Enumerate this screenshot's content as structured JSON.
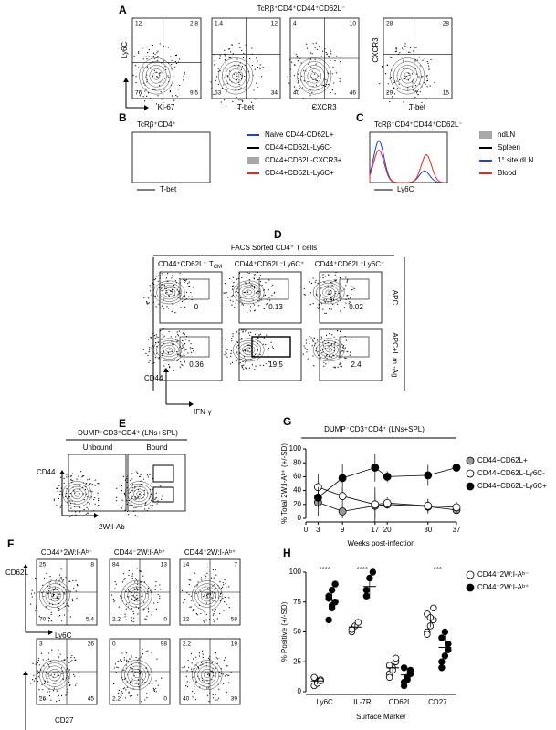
{
  "panels": {
    "A": {
      "label": "A",
      "title": "TcRβ⁺CD4⁺CD44⁺CD62L⁻",
      "plots": [
        {
          "y_label": "Ly6C",
          "x_label": "Ki-67",
          "quadrants": [
            "12",
            "2.8",
            "76",
            "9.5"
          ]
        },
        {
          "x_label": "T-bet",
          "quadrants": [
            "1.4",
            "12",
            "53",
            "34"
          ]
        },
        {
          "x_label": "CXCR3",
          "quadrants": [
            "4",
            "10",
            "40",
            "46"
          ]
        },
        {
          "y_label": "CXCR3",
          "x_label": "T-bet",
          "quadrants": [
            "28",
            "28",
            "29",
            "15"
          ]
        }
      ]
    },
    "B": {
      "label": "B",
      "title": "TcRβ⁺CD4⁺",
      "x_label": "T-bet",
      "legend": [
        {
          "name": "Naive CD44-CD62L+",
          "color": "#1f3fd6"
        },
        {
          "name": "CD44+CD62L-Ly6C-",
          "color": "#000000"
        },
        {
          "name": "CD44+CD62L-CXCR3+",
          "color": "#a8a8a8"
        },
        {
          "name": "CD44+CD62L-Ly6C+",
          "color": "#e8291c"
        }
      ]
    },
    "C": {
      "label": "C",
      "title": "TcRβ⁺CD4⁺CD44⁺CD62L⁻",
      "x_label": "Ly6C",
      "legend": [
        {
          "name": "ndLN",
          "color": "#a8a8a8"
        },
        {
          "name": "Spleen",
          "color": "#000000"
        },
        {
          "name": "1° site dLN",
          "color": "#1f3fd6"
        },
        {
          "name": "Blood",
          "color": "#e8291c"
        }
      ]
    },
    "D": {
      "label": "D",
      "title": "FACS Sorted CD4⁺ T cells",
      "columns": [
        "CD44⁺CD62L⁺ T",
        "CD44⁺CD62L⁻Ly6C⁺",
        "CD44⁺CD62L⁻Ly6C⁻"
      ],
      "tcm_sub": "CM",
      "rows": [
        "APC",
        "APC+L.m.-Ag"
      ],
      "gates": [
        [
          "0",
          "0.13",
          "0.02"
        ],
        [
          "0.36",
          "19.5",
          "2.4"
        ]
      ],
      "y_label": "CD44",
      "x_label": "IFN-γ"
    },
    "E": {
      "label": "E",
      "title": "DUMP⁻CD3⁺CD4⁺ (LNs+SPL)",
      "columns": [
        "Unbound",
        "Bound"
      ],
      "y_label": "CD44",
      "x_label": "2W:I-Ab"
    },
    "F": {
      "label": "F",
      "columns": [
        "CD44⁺2W:I-Aᵇ⁻",
        "CD44⁻2W:I-Aᵇ⁺",
        "CD44⁺2W:I-Aᵇ⁺"
      ],
      "y_label": "CD62L",
      "row_x_labels": [
        "Ly6C",
        "CD27"
      ],
      "quadrants": [
        [
          [
            "25",
            "8",
            "70",
            "5.4"
          ],
          [
            "84",
            "13",
            "2.2",
            "0"
          ],
          [
            "14",
            "7",
            "22",
            "58"
          ]
        ],
        [
          [
            "3",
            "26",
            "26",
            "45"
          ],
          [
            "0",
            "98",
            "2.2",
            "0"
          ],
          [
            "2.2",
            "19",
            "40",
            "39"
          ]
        ]
      ]
    }
  },
  "chart_data": [
    {
      "type": "line",
      "label": "G",
      "title": "DUMP⁻CD3⁺CD4⁺ (LNs+SPL)",
      "y_label": "% Total 2W:I-Aᵇ⁺ (+/-SD)",
      "x_label": "Weeks post-infection",
      "x": [
        3,
        9,
        17,
        20,
        30,
        37
      ],
      "xlim": [
        0,
        37
      ],
      "xticks": [
        0,
        3,
        9,
        17,
        20,
        30,
        37
      ],
      "ylim": [
        0,
        100
      ],
      "yticks": [
        0,
        20,
        40,
        60,
        80,
        100
      ],
      "series": [
        {
          "name": "CD44+CD62L+",
          "color": "#999999",
          "values": [
            23,
            10,
            18,
            20,
            17,
            12
          ],
          "errors": [
            20,
            10,
            18,
            5,
            10,
            5
          ]
        },
        {
          "name": "CD44+CD62L-Ly6C-",
          "color": "#ffffff",
          "values": [
            45,
            32,
            20,
            22,
            18,
            16
          ],
          "errors": [
            18,
            12,
            25,
            8,
            10,
            8
          ]
        },
        {
          "name": "CD44+CD62L-Ly6C+",
          "color": "#000000",
          "values": [
            30,
            58,
            73,
            60,
            62,
            73
          ],
          "errors": [
            15,
            20,
            20,
            8,
            15,
            4
          ]
        }
      ]
    },
    {
      "type": "dot",
      "label": "H",
      "y_label": "% Positive (+/-SD)",
      "x_label": "Surface Marker",
      "categories": [
        "Ly6C",
        "IL-7R",
        "CD62L",
        "CD27"
      ],
      "ylim": [
        0,
        100
      ],
      "yticks": [
        0,
        25,
        50,
        75,
        100
      ],
      "annotations": [
        "****",
        "****",
        null,
        "***"
      ],
      "series": [
        {
          "name": "CD44⁺2W:I-Aᵇ⁻",
          "color": "#ffffff",
          "values": [
            9,
            54,
            20,
            60
          ],
          "errors": [
            3,
            3,
            6,
            6
          ],
          "points": [
            [
              5,
              8,
              10,
              12,
              7,
              9
            ],
            [
              50,
              55,
              58,
              52
            ],
            [
              15,
              20,
              25,
              22,
              18,
              28,
              12
            ],
            [
              50,
              55,
              60,
              65,
              62,
              70,
              48
            ]
          ]
        },
        {
          "name": "CD44⁺2W:I-Aᵇ⁺",
          "color": "#000000",
          "values": [
            77,
            88,
            14,
            37
          ],
          "errors": [
            10,
            10,
            6,
            10
          ],
          "points": [
            [
              60,
              70,
              75,
              80,
              85,
              90,
              78,
              72
            ],
            [
              80,
              95,
              100,
              85
            ],
            [
              5,
              10,
              15,
              20,
              12,
              18,
              8
            ],
            [
              20,
              30,
              40,
              45,
              50,
              35,
              25
            ]
          ]
        }
      ]
    }
  ]
}
